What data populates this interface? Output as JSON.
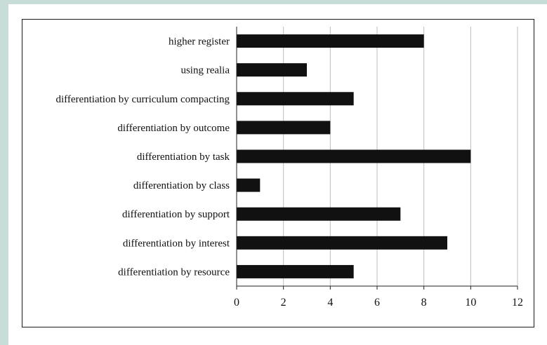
{
  "chart_data": {
    "type": "bar",
    "orientation": "horizontal",
    "categories": [
      "higher register",
      "using realia",
      "differentiation by curriculum compacting",
      "differentiation by outcome",
      "differentiation by task",
      "differentiation by class",
      "differentiation by support",
      "differentiation by interest",
      "differentiation by resource"
    ],
    "values": [
      8,
      3,
      5,
      4,
      10,
      1,
      7,
      9,
      5
    ],
    "xlim": [
      0,
      12
    ],
    "xticks": [
      "0",
      "2",
      "4",
      "6",
      "8",
      "10",
      "12"
    ],
    "grid": "vertical",
    "legend": "none",
    "bar_color": "#111111",
    "title": "",
    "xlabel": "",
    "ylabel": ""
  }
}
